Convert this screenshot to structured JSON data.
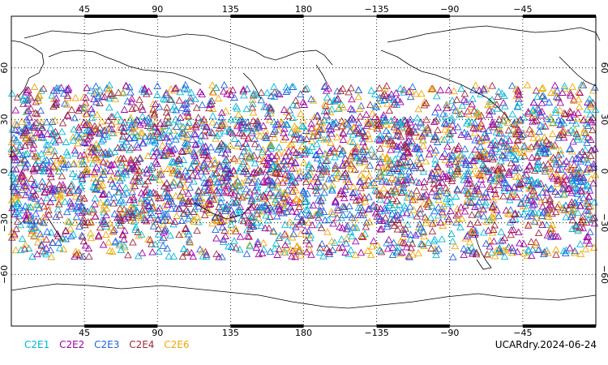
{
  "map": {
    "projection": "cylindrical-equidistant",
    "lon_range": [
      0,
      360
    ],
    "lat_range": [
      -90,
      90
    ],
    "top_lon_labels": [
      "45",
      "90",
      "135",
      "180",
      "−135",
      "−90",
      "−45"
    ],
    "bottom_lon_labels": [
      "45",
      "90",
      "135",
      "180",
      "−135",
      "−90",
      "−45"
    ],
    "lat_labels": [
      "60",
      "30",
      "0",
      "−30",
      "−60"
    ],
    "grid": "dotted",
    "marker": "open-triangle",
    "observation_lat_band": [
      -50,
      50
    ]
  },
  "legend": {
    "items": [
      {
        "label": "C2E1",
        "color": "#00b8d8"
      },
      {
        "label": "C2E2",
        "color": "#a000a8"
      },
      {
        "label": "C2E3",
        "color": "#1e64e0"
      },
      {
        "label": "C2E4",
        "color": "#a0283c"
      },
      {
        "label": "C2E6",
        "color": "#f0a800"
      }
    ]
  },
  "stamp": "UCARdry.2024-06-24"
}
